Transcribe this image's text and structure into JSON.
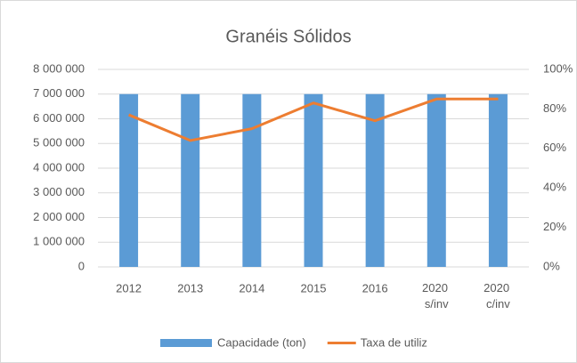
{
  "chart_data": {
    "type": "bar+line",
    "title": "Granéis Sólidos",
    "categories": [
      "2012",
      "2013",
      "2014",
      "2015",
      "2016",
      "2020 s/inv",
      "2020 c/inv"
    ],
    "series": [
      {
        "name": "Capacidade (ton)",
        "type": "bar",
        "color": "#5b9bd5",
        "values": [
          7000000,
          7000000,
          7000000,
          7000000,
          7000000,
          7000000,
          7000000
        ]
      },
      {
        "name": "Taxa de utiliz",
        "type": "line",
        "axis": "y2",
        "color": "#ed7d31",
        "values": [
          77,
          64,
          70,
          83,
          74,
          85,
          85
        ]
      }
    ],
    "ylim": [
      0,
      8000000
    ],
    "yticks": [
      0,
      {
        "value": 1000000,
        "label": "1 000 000"
      },
      {
        "value": 2000000,
        "label": "2 000 000"
      },
      {
        "value": 3000000,
        "label": "3 000 000"
      },
      {
        "value": 4000000,
        "label": "4 000 000"
      },
      {
        "value": 5000000,
        "label": "5 000 000"
      },
      {
        "value": 6000000,
        "label": "6 000 000"
      },
      {
        "value": 7000000,
        "label": "7 000 000"
      },
      {
        "value": 8000000,
        "label": "8 000 000"
      }
    ],
    "y2lim": [
      0,
      100
    ],
    "y2ticks": [
      {
        "value": 0,
        "label": "0%"
      },
      {
        "value": 20,
        "label": "20%"
      },
      {
        "value": 40,
        "label": "40%"
      },
      {
        "value": 60,
        "label": "60%"
      },
      {
        "value": 80,
        "label": "80%"
      },
      {
        "value": 100,
        "label": "100%"
      }
    ],
    "grid": true,
    "legend": "bottom"
  }
}
